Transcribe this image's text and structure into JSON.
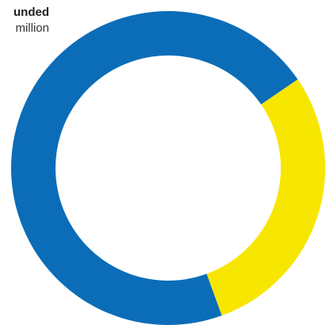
{
  "chart_data": {
    "type": "pie",
    "style": "donut",
    "slices": [
      {
        "value": 71,
        "color": "#0b6db7"
      },
      {
        "value": 29,
        "color": "#f7e600"
      }
    ],
    "annotations": [
      {
        "title": "unded",
        "text": "million"
      }
    ]
  }
}
